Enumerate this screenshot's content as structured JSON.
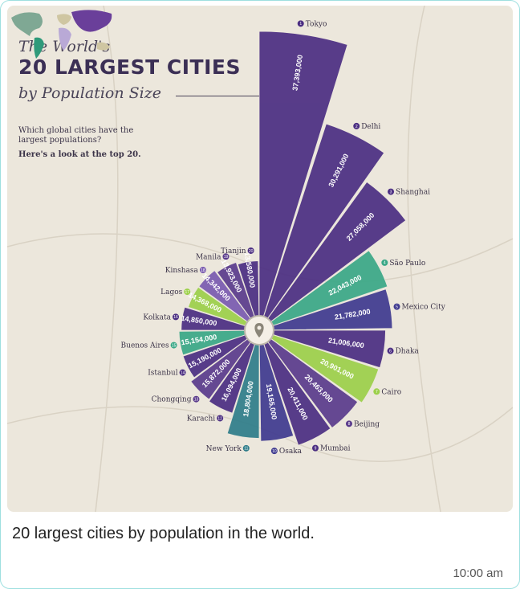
{
  "poster": {
    "title_line1": "The World's",
    "title_line2": "20 LARGEST CITIES",
    "title_line3": "by Population Size",
    "question": "Which global cities have the largest populations?",
    "look": "Here's a look at the top 20."
  },
  "chart_data": {
    "type": "bar",
    "subtype": "radial-bar",
    "categories": [
      "Tokyo",
      "Delhi",
      "Shanghai",
      "São Paulo",
      "Mexico City",
      "Dhaka",
      "Cairo",
      "Beijing",
      "Mumbai",
      "Osaka",
      "New York",
      "Karachi",
      "Chongqing",
      "Istanbul",
      "Buenos Aires",
      "Kolkata",
      "Lagos",
      "Kinshasa",
      "Manila",
      "Tianjin"
    ],
    "values": [
      37393000,
      30291000,
      27058000,
      22043000,
      21782000,
      21006000,
      20901000,
      20463000,
      20411000,
      19165000,
      18804000,
      16094000,
      15872000,
      15190000,
      15154000,
      14850000,
      14368000,
      14342000,
      13923000,
      13580000
    ],
    "value_labels": [
      "37,393,000",
      "30,291,000",
      "27,058,000",
      "22,043,000",
      "21,782,000",
      "21,006,000",
      "20,901,000",
      "20,463,000",
      "20,411,000",
      "19,165,000",
      "18,804,000",
      "16,094,000",
      "15,872,000",
      "15,190,000",
      "15,154,000",
      "14,850,000",
      "14,368,000",
      "14,342,000",
      "13,923,000",
      "13,580,000"
    ],
    "ranks": [
      "1",
      "2",
      "3",
      "4",
      "5",
      "6",
      "7",
      "8",
      "9",
      "10",
      "11",
      "12",
      "13",
      "14",
      "15",
      "16",
      "17",
      "18",
      "19",
      "20"
    ],
    "colors": [
      "#4b2e82",
      "#4b2e82",
      "#4b2e82",
      "#3aa887",
      "#3f3a8f",
      "#4b2e82",
      "#9cd04a",
      "#5a3b8c",
      "#4b2e82",
      "#3f3a8f",
      "#2f7d8a",
      "#4b2e82",
      "#5a3b8c",
      "#4b2e82",
      "#3aa887",
      "#4b2e82",
      "#9cd04a",
      "#7a5bb0",
      "#5a3b8c",
      "#4b2e82"
    ]
  },
  "message": {
    "caption": "20 largest cities by population in the world.",
    "time": "10:00 am"
  },
  "colors": {
    "bg": "#ece7dc",
    "purple": "#4b2e82",
    "teal": "#3aa887",
    "lime": "#9cd04a"
  }
}
